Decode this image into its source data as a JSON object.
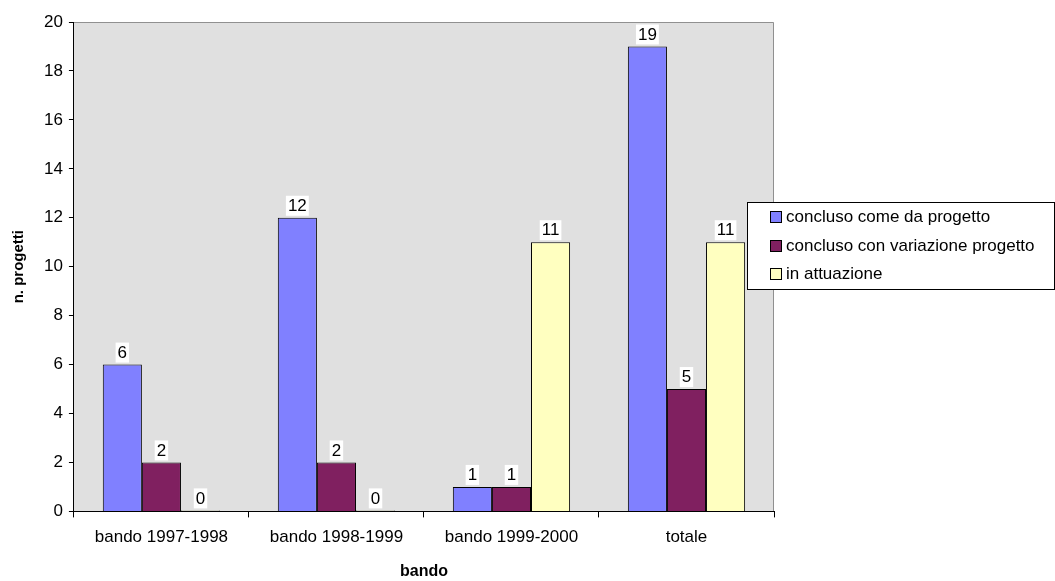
{
  "chart_data": {
    "type": "bar",
    "xlabel": "bando",
    "ylabel": "n. progetti",
    "categories": [
      "bando 1997-1998",
      "bando 1998-1999",
      "bando 1999-2000",
      "totale"
    ],
    "series": [
      {
        "name": "concluso come da progetto",
        "color": "#8080ff",
        "values": [
          6,
          12,
          1,
          19
        ]
      },
      {
        "name": "concluso con variazione progetto",
        "color": "#802060",
        "values": [
          2,
          2,
          1,
          5
        ]
      },
      {
        "name": "in attuazione",
        "color": "#ffffc0",
        "values": [
          0,
          0,
          11,
          11
        ]
      }
    ],
    "ylim": [
      0,
      20
    ],
    "yticks": [
      0,
      2,
      4,
      6,
      8,
      10,
      12,
      14,
      16,
      18,
      20
    ],
    "data_labels": true,
    "legend": "right"
  }
}
